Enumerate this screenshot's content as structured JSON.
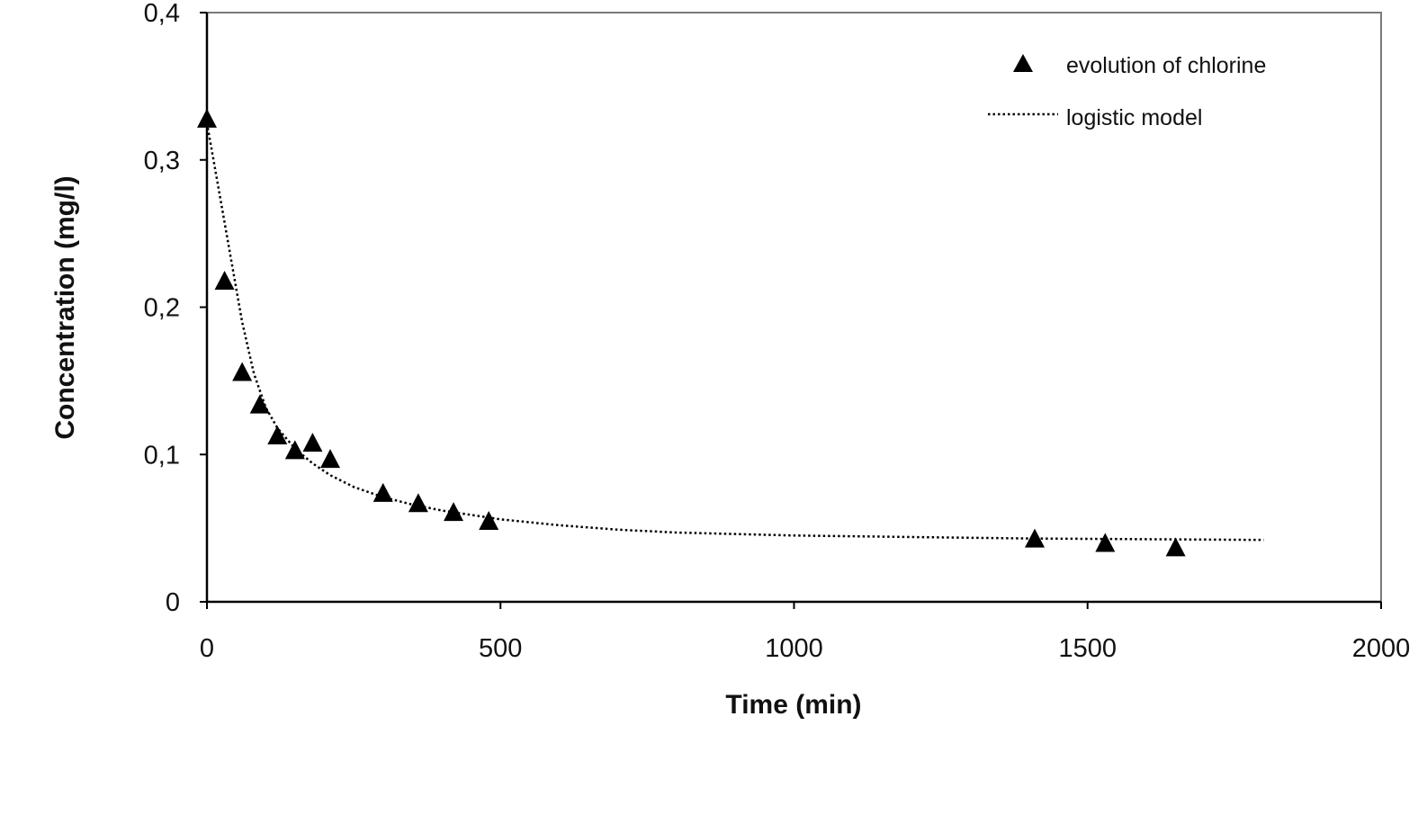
{
  "chart_data": {
    "type": "scatter",
    "xlabel": "Time (min)",
    "ylabel": "Concentration (mg/l)",
    "xlim": [
      0,
      2000
    ],
    "ylim": [
      0,
      0.4
    ],
    "x_ticks": [
      0,
      500,
      1000,
      1500,
      2000
    ],
    "x_tick_labels": [
      "0",
      "500",
      "1000",
      "1500",
      "2000"
    ],
    "y_ticks": [
      0,
      0.1,
      0.2,
      0.3,
      0.4
    ],
    "y_tick_labels": [
      "0",
      "0,1",
      "0,2",
      "0,3",
      "0,4"
    ],
    "grid": false,
    "legend_position": "top-right",
    "series": [
      {
        "name": "evolution of chlorine",
        "kind": "scatter",
        "marker": "triangle",
        "color": "#000000",
        "x": [
          0,
          30,
          60,
          90,
          120,
          150,
          180,
          210,
          300,
          360,
          420,
          480,
          1410,
          1530,
          1650
        ],
        "y": [
          0.328,
          0.218,
          0.156,
          0.134,
          0.113,
          0.103,
          0.108,
          0.097,
          0.074,
          0.067,
          0.061,
          0.055,
          0.043,
          0.04,
          0.037
        ]
      },
      {
        "name": "logistic model",
        "kind": "line",
        "style": "dotted",
        "color": "#000000",
        "x": [
          0,
          20,
          40,
          60,
          80,
          100,
          120,
          150,
          180,
          210,
          250,
          300,
          350,
          400,
          450,
          500,
          600,
          700,
          800,
          1000,
          1200,
          1400,
          1600,
          1800
        ],
        "y": [
          0.325,
          0.28,
          0.235,
          0.19,
          0.155,
          0.132,
          0.118,
          0.104,
          0.094,
          0.086,
          0.078,
          0.071,
          0.066,
          0.062,
          0.059,
          0.056,
          0.052,
          0.049,
          0.047,
          0.045,
          0.044,
          0.043,
          0.0425,
          0.042
        ]
      }
    ]
  }
}
